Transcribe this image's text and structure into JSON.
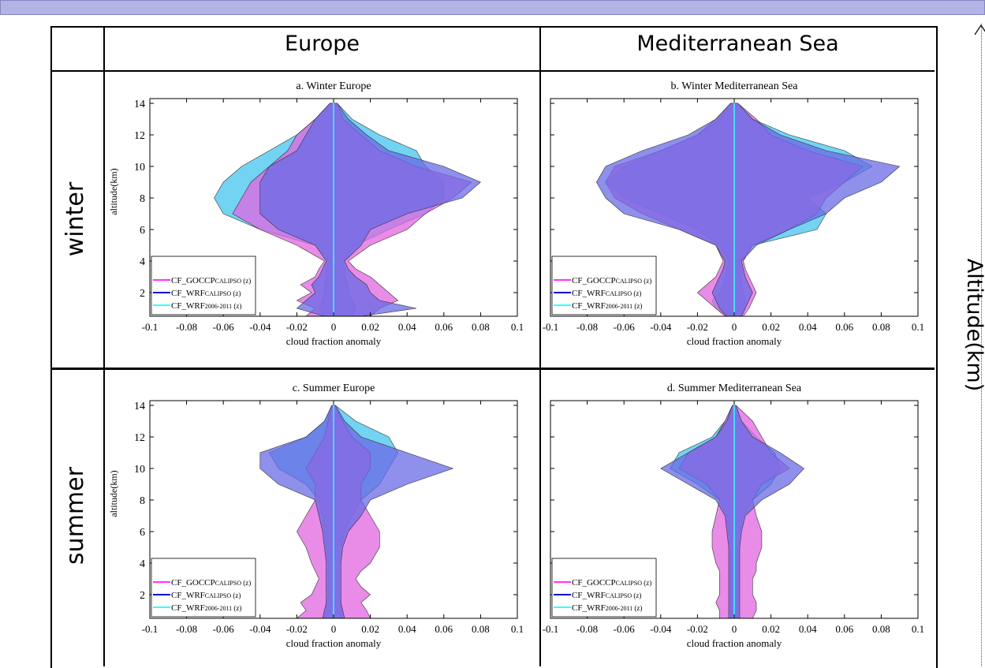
{
  "columns": [
    "Europe",
    "Mediterranean Sea"
  ],
  "rows": [
    "winter",
    "summer"
  ],
  "right_axis_label": "Altitude(km)",
  "colors": {
    "goccp": "#ff33ff",
    "wrf_calipso": "#0000cc",
    "wrf_2006": "#33ffff",
    "fill_goccp": "#e066e0",
    "fill_wrf_calipso": "#6a6ae6",
    "fill_wrf_2006": "#44c4ee"
  },
  "chart_data": [
    {
      "type": "area",
      "title": "a. Winter Europe",
      "xlabel": "cloud fraction anomaly",
      "ylabel": "altitude(km)",
      "xlim": [
        -0.1,
        0.1
      ],
      "ylim": [
        0.5,
        14.3
      ],
      "xticks": [
        "-0.1",
        "-0.08",
        "-0.06",
        "-0.04",
        "-0.02",
        "0",
        "0.02",
        "0.04",
        "0.06",
        "0.08",
        "0.1"
      ],
      "yticks": [
        "2",
        "4",
        "6",
        "8",
        "10",
        "12",
        "14"
      ],
      "legend": {
        "position": "bottom-left",
        "entries": [
          {
            "main": "CF_GOCCP",
            "sub": "CALIPSO",
            "suffix": " (z)"
          },
          {
            "main": "CF_WRF",
            "sub": "CALIPSO",
            "suffix": " (z)"
          },
          {
            "main": "CF_WRF",
            "sub": "2006-2011",
            "suffix": " (z)"
          }
        ]
      },
      "series": [
        {
          "key": "goccp",
          "y": [
            0.5,
            1,
            1.5,
            2,
            2.5,
            3,
            3.5,
            4,
            5,
            6,
            7,
            8,
            9,
            10,
            11,
            12,
            13,
            14
          ],
          "lower": [
            -0.015,
            -0.01,
            -0.02,
            -0.012,
            -0.018,
            -0.01,
            -0.008,
            -0.005,
            -0.02,
            -0.04,
            -0.055,
            -0.05,
            -0.045,
            -0.035,
            -0.025,
            -0.02,
            -0.01,
            -0.002
          ],
          "upper": [
            0.02,
            0.025,
            0.035,
            0.03,
            0.025,
            0.02,
            0.012,
            0.008,
            0.02,
            0.04,
            0.05,
            0.065,
            0.075,
            0.045,
            0.025,
            0.015,
            0.005,
            0.002
          ]
        },
        {
          "key": "wrf_calipso",
          "y": [
            0.5,
            1,
            1.5,
            2,
            2.5,
            3,
            3.5,
            4,
            5,
            6,
            7,
            8,
            9,
            10,
            11,
            12,
            13,
            14
          ],
          "lower": [
            -0.005,
            -0.02,
            -0.015,
            -0.01,
            -0.012,
            -0.008,
            -0.006,
            -0.004,
            -0.01,
            -0.03,
            -0.04,
            -0.04,
            -0.04,
            -0.035,
            -0.02,
            -0.015,
            -0.01,
            -0.002
          ],
          "upper": [
            0.015,
            0.045,
            0.025,
            0.02,
            0.018,
            0.012,
            0.008,
            0.006,
            0.015,
            0.02,
            0.04,
            0.07,
            0.08,
            0.06,
            0.03,
            0.018,
            0.008,
            0.002
          ]
        },
        {
          "key": "wrf_2006",
          "y": [
            0.5,
            1,
            1.5,
            2,
            2.5,
            3,
            3.5,
            4,
            5,
            6,
            7,
            8,
            9,
            10,
            11,
            12,
            13,
            14
          ],
          "lower": [
            -0.005,
            -0.008,
            -0.006,
            -0.005,
            -0.005,
            -0.004,
            -0.004,
            -0.003,
            -0.01,
            -0.04,
            -0.06,
            -0.065,
            -0.06,
            -0.05,
            -0.035,
            -0.02,
            -0.01,
            -0.002
          ],
          "upper": [
            0.01,
            0.012,
            0.01,
            0.008,
            0.008,
            0.006,
            0.006,
            0.005,
            0.012,
            0.03,
            0.05,
            0.06,
            0.06,
            0.05,
            0.045,
            0.025,
            0.01,
            0.002
          ]
        }
      ]
    },
    {
      "type": "area",
      "title": "b. Winter Mediterranean Sea",
      "xlabel": "cloud fraction anomaly",
      "ylabel": "",
      "xlim": [
        -0.1,
        0.1
      ],
      "ylim": [
        0.5,
        14.3
      ],
      "xticks": [
        "-0.1",
        "-0.08",
        "-0.06",
        "-0.04",
        "-0.02",
        "0",
        "0.02",
        "0.04",
        "0.06",
        "0.08",
        "0.1"
      ],
      "yticks": [],
      "legend": {
        "position": "bottom-left",
        "entries": [
          {
            "main": "CF_GOCCP",
            "sub": "CALIPSO",
            "suffix": " (z)"
          },
          {
            "main": "CF_WRF",
            "sub": "CALIPSO",
            "suffix": " (z)"
          },
          {
            "main": "CF_WRF",
            "sub": "2006-2011",
            "suffix": " (z)"
          }
        ]
      },
      "series": [
        {
          "key": "goccp",
          "y": [
            0.5,
            1,
            1.5,
            2,
            2.5,
            3,
            3.5,
            4,
            5,
            6,
            7,
            8,
            9,
            10,
            11,
            12,
            13,
            14
          ],
          "lower": [
            -0.005,
            -0.01,
            -0.015,
            -0.02,
            -0.015,
            -0.01,
            -0.008,
            -0.006,
            -0.01,
            -0.03,
            -0.05,
            -0.065,
            -0.07,
            -0.065,
            -0.04,
            -0.02,
            -0.01,
            -0.002
          ],
          "upper": [
            0.005,
            0.008,
            0.01,
            0.012,
            0.01,
            0.008,
            0.006,
            0.005,
            0.01,
            0.03,
            0.045,
            0.05,
            0.06,
            0.07,
            0.04,
            0.02,
            0.012,
            0.002
          ]
        },
        {
          "key": "wrf_calipso",
          "y": [
            0.5,
            1,
            1.5,
            2,
            2.5,
            3,
            3.5,
            4,
            5,
            6,
            7,
            8,
            9,
            10,
            11,
            12,
            13,
            14
          ],
          "lower": [
            -0.004,
            -0.008,
            -0.01,
            -0.012,
            -0.01,
            -0.008,
            -0.006,
            -0.005,
            -0.01,
            -0.03,
            -0.06,
            -0.07,
            -0.075,
            -0.07,
            -0.05,
            -0.025,
            -0.01,
            -0.002
          ],
          "upper": [
            0.004,
            0.006,
            0.008,
            0.01,
            0.008,
            0.006,
            0.005,
            0.004,
            0.012,
            0.03,
            0.05,
            0.06,
            0.08,
            0.09,
            0.05,
            0.025,
            0.01,
            0.002
          ]
        },
        {
          "key": "wrf_2006",
          "y": [
            0.5,
            1,
            1.5,
            2,
            2.5,
            3,
            3.5,
            4,
            5,
            6,
            7,
            8,
            9,
            10,
            11,
            12,
            13,
            14
          ],
          "lower": [
            -0.004,
            -0.01,
            -0.012,
            -0.008,
            -0.006,
            -0.005,
            -0.004,
            -0.003,
            -0.008,
            -0.02,
            -0.04,
            -0.06,
            -0.07,
            -0.06,
            -0.04,
            -0.02,
            -0.008,
            -0.002
          ],
          "upper": [
            0.004,
            0.006,
            0.006,
            0.005,
            0.004,
            0.004,
            0.004,
            0.003,
            0.01,
            0.045,
            0.05,
            0.04,
            0.06,
            0.075,
            0.06,
            0.03,
            0.01,
            0.002
          ]
        }
      ]
    },
    {
      "type": "area",
      "title": "c. Summer Europe",
      "xlabel": "cloud fraction anomaly",
      "ylabel": "altitude(km)",
      "xlim": [
        -0.1,
        0.1
      ],
      "ylim": [
        0.5,
        14.3
      ],
      "xticks": [
        "-0.1",
        "-0.08",
        "-0.06",
        "-0.04",
        "-0.02",
        "0",
        "0.02",
        "0.04",
        "0.06",
        "0.08",
        "0.1"
      ],
      "yticks": [
        "2",
        "4",
        "6",
        "8",
        "10",
        "12",
        "14"
      ],
      "legend": {
        "position": "bottom-left",
        "entries": [
          {
            "main": "CF_GOCCP",
            "sub": "CALIPSO",
            "suffix": " (z)"
          },
          {
            "main": "CF_WRF",
            "sub": "CALIPSO",
            "suffix": " (z)"
          },
          {
            "main": "CF_WRF",
            "sub": "2006-2011",
            "suffix": " (z)"
          }
        ]
      },
      "series": [
        {
          "key": "goccp",
          "y": [
            0.5,
            1,
            1.5,
            2,
            2.5,
            3,
            3.5,
            4,
            5,
            6,
            7,
            8,
            9,
            10,
            11,
            12,
            13,
            14
          ],
          "lower": [
            -0.02,
            -0.015,
            -0.018,
            -0.012,
            -0.01,
            -0.008,
            -0.01,
            -0.012,
            -0.015,
            -0.02,
            -0.015,
            -0.01,
            -0.01,
            -0.015,
            -0.01,
            -0.005,
            -0.003,
            -0.001
          ],
          "upper": [
            0.02,
            0.018,
            0.015,
            0.02,
            0.015,
            0.012,
            0.015,
            0.02,
            0.025,
            0.025,
            0.02,
            0.015,
            0.015,
            0.02,
            0.02,
            0.01,
            0.005,
            0.001
          ]
        },
        {
          "key": "wrf_calipso",
          "y": [
            0.5,
            1,
            1.5,
            2,
            2.5,
            3,
            3.5,
            4,
            5,
            6,
            7,
            8,
            9,
            10,
            11,
            12,
            13,
            14
          ],
          "lower": [
            -0.006,
            -0.005,
            -0.004,
            -0.004,
            -0.004,
            -0.004,
            -0.004,
            -0.004,
            -0.005,
            -0.006,
            -0.008,
            -0.01,
            -0.03,
            -0.04,
            -0.04,
            -0.015,
            -0.005,
            -0.001
          ],
          "upper": [
            0.006,
            0.005,
            0.004,
            0.004,
            0.004,
            0.004,
            0.004,
            0.004,
            0.005,
            0.008,
            0.015,
            0.02,
            0.04,
            0.065,
            0.04,
            0.015,
            0.006,
            0.001
          ]
        },
        {
          "key": "wrf_2006",
          "y": [
            0.5,
            1,
            1.5,
            2,
            2.5,
            3,
            3.5,
            4,
            5,
            6,
            7,
            8,
            9,
            10,
            11,
            12,
            13,
            14
          ],
          "lower": [
            -0.005,
            -0.004,
            -0.004,
            -0.003,
            -0.003,
            -0.003,
            -0.003,
            -0.003,
            -0.004,
            -0.005,
            -0.006,
            -0.008,
            -0.015,
            -0.03,
            -0.035,
            -0.015,
            -0.005,
            -0.001
          ],
          "upper": [
            0.005,
            0.004,
            0.004,
            0.003,
            0.003,
            0.003,
            0.003,
            0.003,
            0.004,
            0.006,
            0.01,
            0.015,
            0.025,
            0.03,
            0.035,
            0.03,
            0.012,
            0.001
          ]
        }
      ]
    },
    {
      "type": "area",
      "title": "d. Summer Mediterranean Sea",
      "xlabel": "cloud fraction anomaly",
      "ylabel": "",
      "xlim": [
        -0.1,
        0.1
      ],
      "ylim": [
        0.5,
        14.3
      ],
      "xticks": [
        "-0.1",
        "-0.08",
        "-0.06",
        "-0.04",
        "-0.02",
        "0",
        "0.02",
        "0.04",
        "0.06",
        "0.08",
        "0.1"
      ],
      "yticks": [],
      "legend": {
        "position": "bottom-left",
        "entries": [
          {
            "main": "CF_GOCCP",
            "sub": "CALIPSO",
            "suffix": " (z)"
          },
          {
            "main": "CF_WRF",
            "sub": "CALIPSO",
            "suffix": " (z)"
          },
          {
            "main": "CF_WRF",
            "sub": "2006-2011",
            "suffix": " (z)"
          }
        ]
      },
      "series": [
        {
          "key": "goccp",
          "y": [
            0.5,
            1,
            1.5,
            2,
            2.5,
            3,
            3.5,
            4,
            5,
            6,
            7,
            8,
            9,
            10,
            11,
            12,
            13,
            14
          ],
          "lower": [
            -0.008,
            -0.008,
            -0.01,
            -0.008,
            -0.008,
            -0.008,
            -0.008,
            -0.01,
            -0.012,
            -0.012,
            -0.01,
            -0.008,
            -0.015,
            -0.03,
            -0.025,
            -0.01,
            -0.005,
            -0.001
          ],
          "upper": [
            0.01,
            0.012,
            0.012,
            0.01,
            0.01,
            0.01,
            0.012,
            0.012,
            0.015,
            0.015,
            0.012,
            0.01,
            0.015,
            0.03,
            0.02,
            0.015,
            0.01,
            0.001
          ]
        },
        {
          "key": "wrf_calipso",
          "y": [
            0.5,
            1,
            1.5,
            2,
            2.5,
            3,
            3.5,
            4,
            5,
            6,
            7,
            8,
            9,
            10,
            11,
            12,
            13,
            14
          ],
          "lower": [
            -0.003,
            -0.003,
            -0.003,
            -0.003,
            -0.003,
            -0.003,
            -0.003,
            -0.003,
            -0.003,
            -0.004,
            -0.005,
            -0.01,
            -0.025,
            -0.04,
            -0.025,
            -0.01,
            -0.004,
            -0.001
          ],
          "upper": [
            0.003,
            0.003,
            0.003,
            0.003,
            0.003,
            0.003,
            0.003,
            0.003,
            0.003,
            0.004,
            0.006,
            0.015,
            0.03,
            0.038,
            0.025,
            0.01,
            0.004,
            0.001
          ]
        },
        {
          "key": "wrf_2006",
          "y": [
            0.5,
            1,
            1.5,
            2,
            2.5,
            3,
            3.5,
            4,
            5,
            6,
            7,
            8,
            9,
            10,
            11,
            12,
            13,
            14
          ],
          "lower": [
            -0.002,
            -0.002,
            -0.002,
            -0.002,
            -0.002,
            -0.002,
            -0.002,
            -0.002,
            -0.002,
            -0.003,
            -0.004,
            -0.008,
            -0.02,
            -0.035,
            -0.03,
            -0.012,
            -0.005,
            -0.001
          ],
          "upper": [
            0.002,
            0.002,
            0.002,
            0.002,
            0.002,
            0.002,
            0.002,
            0.002,
            0.002,
            0.003,
            0.005,
            0.01,
            0.02,
            0.025,
            0.022,
            0.012,
            0.004,
            0.001
          ]
        }
      ]
    }
  ]
}
